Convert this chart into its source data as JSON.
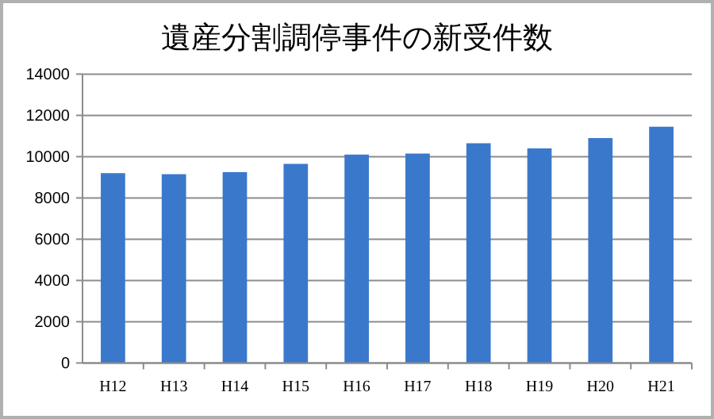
{
  "chart_data": {
    "type": "bar",
    "title": "遺産分割調停事件の新受件数",
    "categories": [
      "H12",
      "H13",
      "H14",
      "H15",
      "H16",
      "H17",
      "H18",
      "H19",
      "H20",
      "H21"
    ],
    "values": [
      9200,
      9150,
      9250,
      9650,
      10100,
      10150,
      10650,
      10400,
      10900,
      11450
    ],
    "color": "#3a78cc",
    "ylim": [
      0,
      14000
    ],
    "yticks": [
      0,
      2000,
      4000,
      6000,
      8000,
      10000,
      12000,
      14000
    ],
    "grid": "y"
  }
}
